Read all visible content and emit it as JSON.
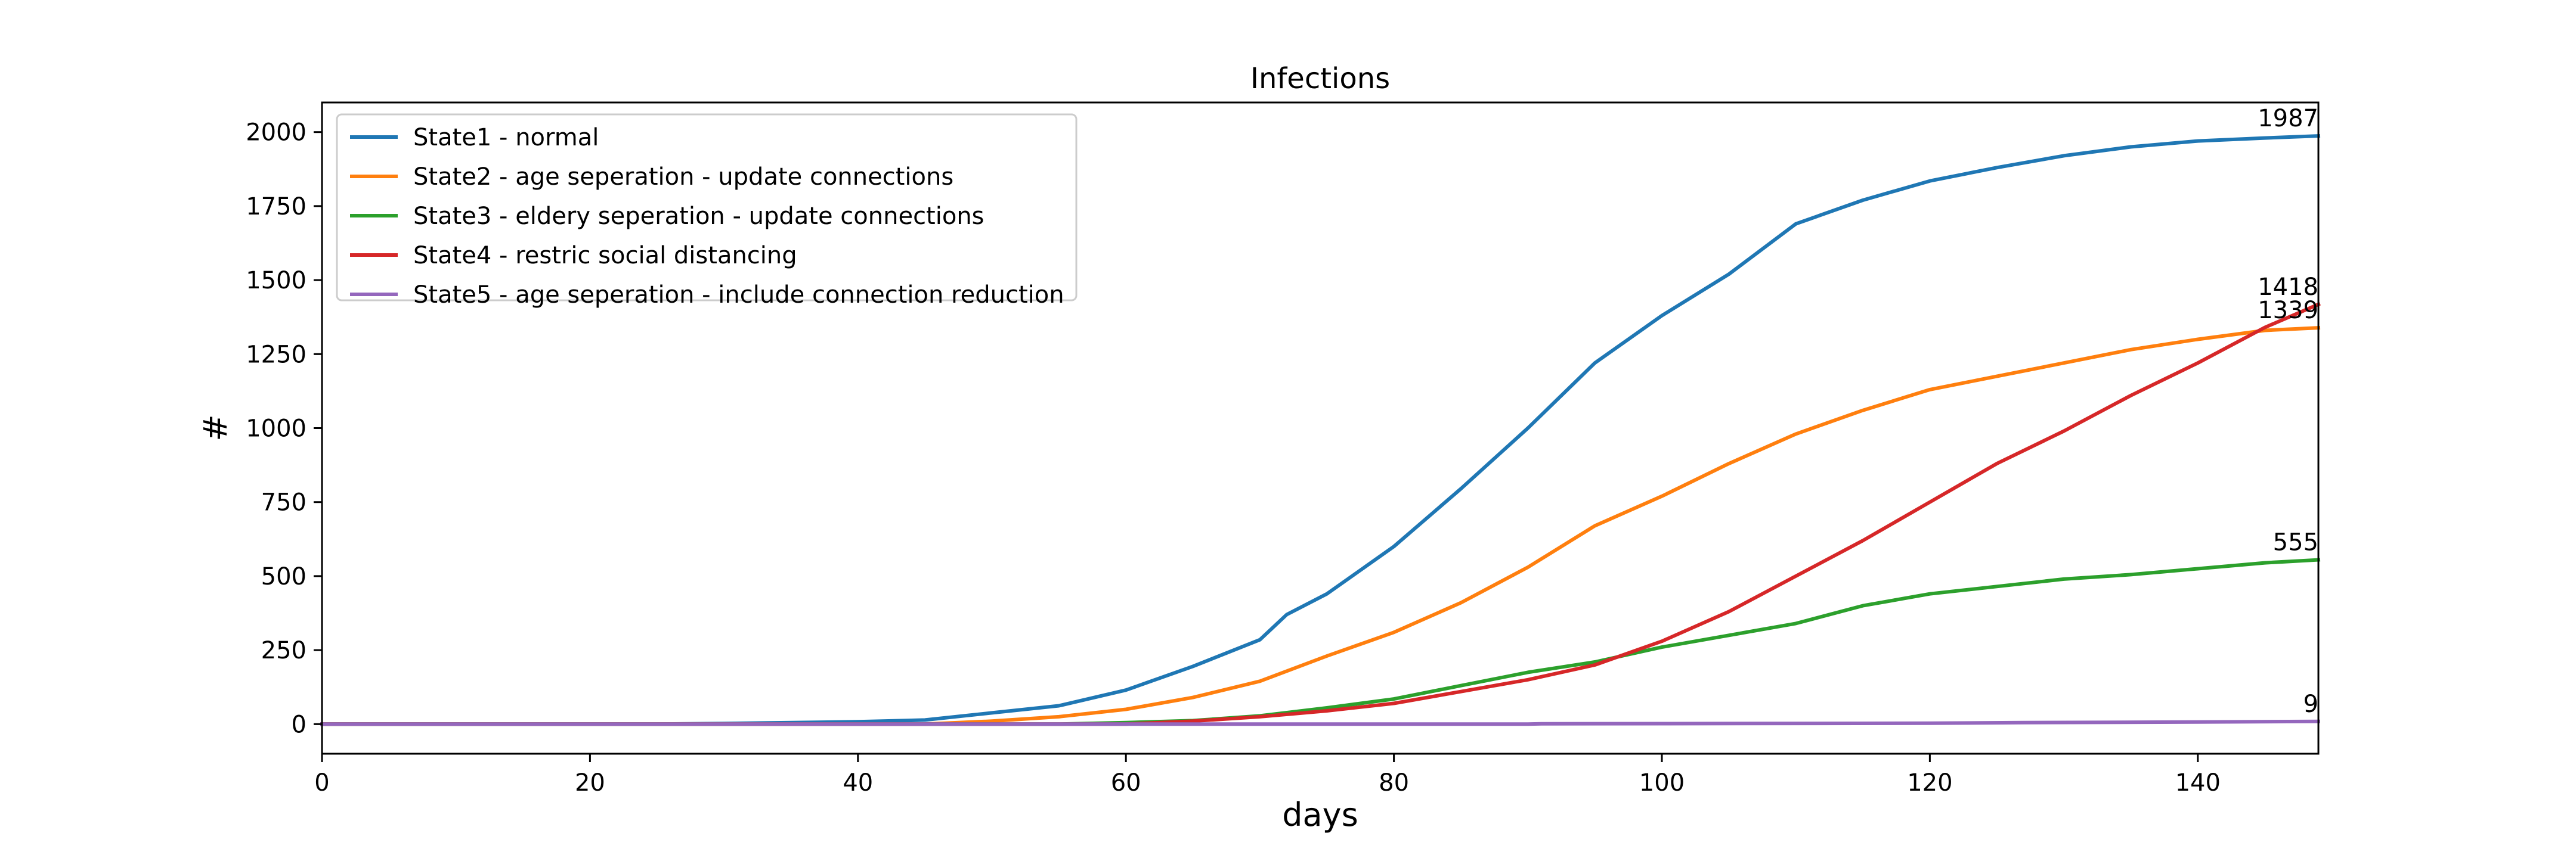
{
  "chart_data": {
    "type": "line",
    "title": "Infections",
    "xlabel": "days",
    "ylabel": "#",
    "xlim": [
      0,
      149
    ],
    "ylim": [
      -100,
      2100
    ],
    "xticks": [
      0,
      20,
      40,
      60,
      80,
      100,
      120,
      140
    ],
    "yticks": [
      0,
      250,
      500,
      750,
      1000,
      1250,
      1500,
      1750,
      2000
    ],
    "grid": false,
    "legend_position": "top-left",
    "series": [
      {
        "name": "State1 - normal",
        "color": "#1f77b4",
        "end_label": "1987",
        "points": [
          [
            0,
            0
          ],
          [
            25,
            0
          ],
          [
            30,
            2
          ],
          [
            40,
            8
          ],
          [
            45,
            14
          ],
          [
            50,
            38
          ],
          [
            55,
            62
          ],
          [
            60,
            115
          ],
          [
            65,
            195
          ],
          [
            70,
            285
          ],
          [
            72,
            370
          ],
          [
            75,
            440
          ],
          [
            80,
            600
          ],
          [
            85,
            795
          ],
          [
            90,
            1000
          ],
          [
            95,
            1220
          ],
          [
            100,
            1380
          ],
          [
            105,
            1520
          ],
          [
            110,
            1690
          ],
          [
            115,
            1770
          ],
          [
            120,
            1835
          ],
          [
            125,
            1880
          ],
          [
            130,
            1920
          ],
          [
            135,
            1950
          ],
          [
            140,
            1970
          ],
          [
            145,
            1980
          ],
          [
            149,
            1987
          ]
        ]
      },
      {
        "name": "State2 - age seperation - update connections",
        "color": "#ff7f0e",
        "end_label": "1339",
        "points": [
          [
            0,
            0
          ],
          [
            45,
            0
          ],
          [
            50,
            10
          ],
          [
            55,
            25
          ],
          [
            60,
            50
          ],
          [
            65,
            90
          ],
          [
            70,
            145
          ],
          [
            75,
            230
          ],
          [
            80,
            310
          ],
          [
            85,
            410
          ],
          [
            90,
            530
          ],
          [
            95,
            670
          ],
          [
            100,
            770
          ],
          [
            105,
            880
          ],
          [
            110,
            980
          ],
          [
            115,
            1060
          ],
          [
            120,
            1130
          ],
          [
            125,
            1175
          ],
          [
            130,
            1220
          ],
          [
            135,
            1265
          ],
          [
            140,
            1300
          ],
          [
            145,
            1330
          ],
          [
            149,
            1339
          ]
        ]
      },
      {
        "name": "State3 - eldery seperation - update connections",
        "color": "#2ca02c",
        "end_label": "555",
        "points": [
          [
            0,
            0
          ],
          [
            55,
            0
          ],
          [
            60,
            5
          ],
          [
            65,
            12
          ],
          [
            70,
            28
          ],
          [
            75,
            55
          ],
          [
            80,
            85
          ],
          [
            85,
            130
          ],
          [
            90,
            175
          ],
          [
            95,
            210
          ],
          [
            100,
            260
          ],
          [
            105,
            300
          ],
          [
            110,
            340
          ],
          [
            115,
            400
          ],
          [
            120,
            440
          ],
          [
            125,
            465
          ],
          [
            130,
            490
          ],
          [
            135,
            505
          ],
          [
            140,
            525
          ],
          [
            145,
            545
          ],
          [
            149,
            555
          ]
        ]
      },
      {
        "name": "State4 - restric social distancing",
        "color": "#d62728",
        "end_label": "1418",
        "points": [
          [
            0,
            0
          ],
          [
            60,
            0
          ],
          [
            65,
            10
          ],
          [
            70,
            25
          ],
          [
            75,
            45
          ],
          [
            80,
            70
          ],
          [
            85,
            110
          ],
          [
            90,
            150
          ],
          [
            95,
            200
          ],
          [
            100,
            280
          ],
          [
            105,
            380
          ],
          [
            110,
            500
          ],
          [
            115,
            620
          ],
          [
            120,
            750
          ],
          [
            125,
            880
          ],
          [
            130,
            990
          ],
          [
            135,
            1110
          ],
          [
            140,
            1220
          ],
          [
            145,
            1340
          ],
          [
            149,
            1418
          ]
        ]
      },
      {
        "name": "State5 - age seperation - include connection reduction",
        "color": "#9467bd",
        "end_label": "9",
        "points": [
          [
            0,
            0
          ],
          [
            90,
            0
          ],
          [
            91,
            1
          ],
          [
            120,
            3
          ],
          [
            127,
            5
          ],
          [
            140,
            7
          ],
          [
            149,
            9
          ]
        ]
      }
    ]
  }
}
